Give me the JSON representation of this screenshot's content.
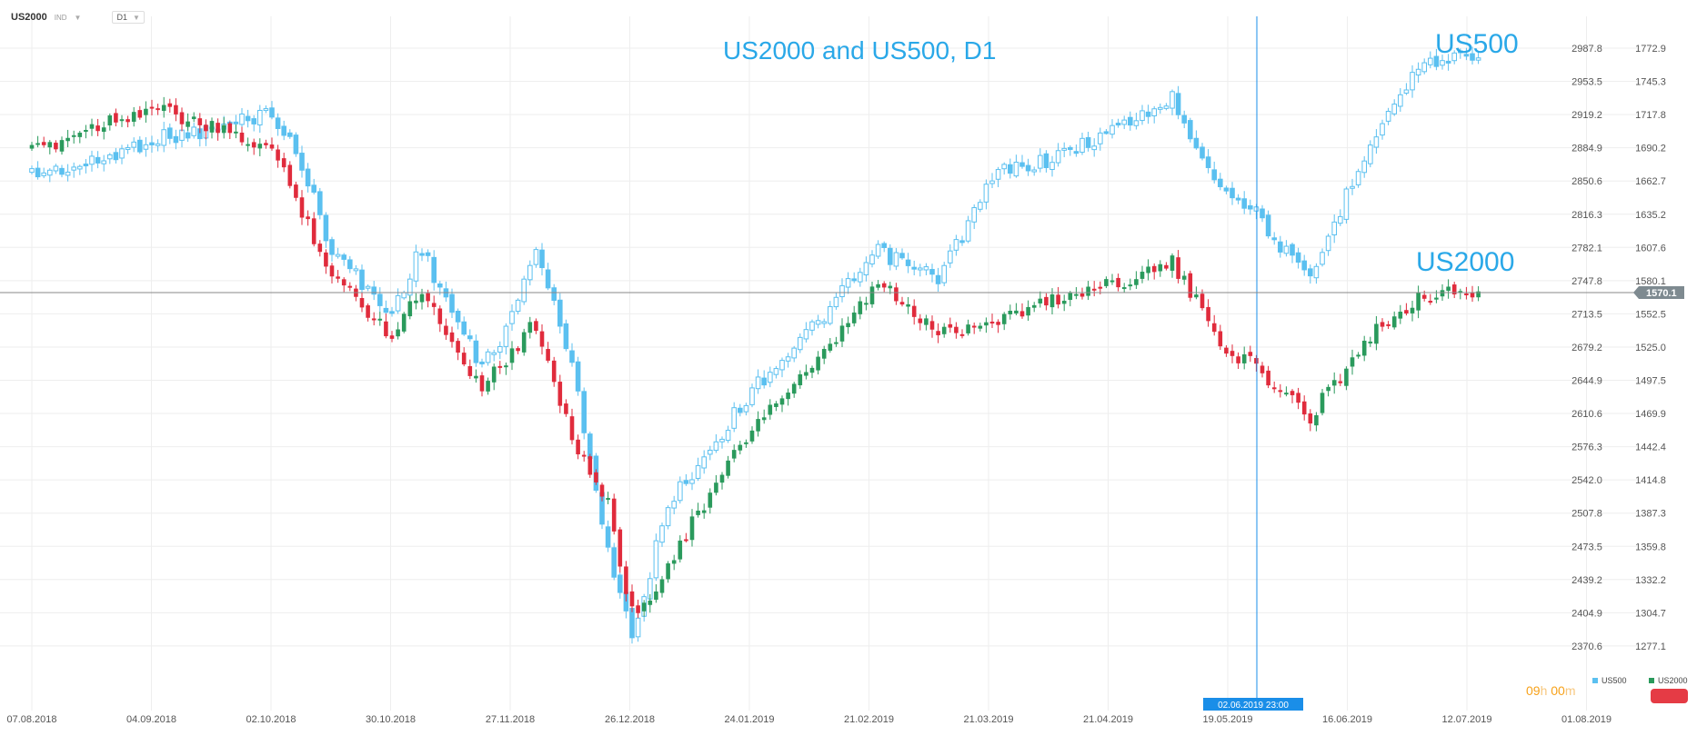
{
  "header": {
    "symbol": "US2000",
    "instrument_type": "IND",
    "timeframe": "D1"
  },
  "annotations": {
    "title": "US2000 and US500, D1",
    "label_us500": "US500",
    "label_us2000": "US2000"
  },
  "timer": {
    "hours": "09",
    "h_unit": "h",
    "minutes": "00",
    "m_unit": "m"
  },
  "legend": [
    {
      "name": "US500",
      "color": "#5bc0f0"
    },
    {
      "name": "US2000",
      "color": "#2a9a5c"
    }
  ],
  "crosshair": {
    "date_label": "02.06.2019 23:00",
    "price_label": "1570.1"
  },
  "colors": {
    "us500": "#5bc0f0",
    "up": "#2a9a5c",
    "down": "#e02b3c",
    "grid": "#eeeeee",
    "price_line": "#888888",
    "crosshair": "#1a8ee8",
    "accent": "#2aa8e8"
  },
  "chart_data": {
    "type": "candlestick",
    "title": "US2000 and US500, D1",
    "x_ticks": [
      "07.08.2018",
      "04.09.2018",
      "02.10.2018",
      "30.10.2018",
      "27.11.2018",
      "26.12.2018",
      "24.01.2019",
      "21.02.2019",
      "21.03.2019",
      "21.04.2019",
      "19.05.2019",
      "16.06.2019",
      "12.07.2019",
      "01.08.2019"
    ],
    "y_ticks_left": [
      2987.8,
      2953.5,
      2919.2,
      2884.9,
      2850.6,
      2816.3,
      2782.1,
      2747.8,
      2713.5,
      2679.2,
      2644.9,
      2610.6,
      2576.3,
      2542.0,
      2507.8,
      2473.5,
      2439.2,
      2404.9,
      2370.6
    ],
    "y_ticks_right": [
      1772.9,
      1745.3,
      1717.8,
      1690.2,
      1662.7,
      1635.2,
      1607.6,
      1580.1,
      1552.5,
      1525.0,
      1497.5,
      1469.9,
      1442.4,
      1414.8,
      1387.3,
      1359.8,
      1332.2,
      1304.7,
      1277.1
    ],
    "current_price": 1570.1,
    "series": [
      {
        "name": "US500",
        "axis": "left",
        "style": "hollow candles",
        "points": [
          {
            "date": "07.08.2018",
            "close": 2858
          },
          {
            "date": "21.08.2018",
            "close": 2868
          },
          {
            "date": "04.09.2018",
            "close": 2894
          },
          {
            "date": "18.09.2018",
            "close": 2903
          },
          {
            "date": "02.10.2018",
            "close": 2923
          },
          {
            "date": "09.10.2018",
            "close": 2870
          },
          {
            "date": "16.10.2018",
            "close": 2783
          },
          {
            "date": "30.10.2018",
            "close": 2711
          },
          {
            "date": "06.11.2018",
            "close": 2782
          },
          {
            "date": "20.11.2018",
            "close": 2658
          },
          {
            "date": "27.11.2018",
            "close": 2703
          },
          {
            "date": "03.12.2018",
            "close": 2785
          },
          {
            "date": "12.12.2018",
            "close": 2650
          },
          {
            "date": "20.12.2018",
            "close": 2468
          },
          {
            "date": "26.12.2018",
            "close": 2373
          },
          {
            "date": "02.01.2019",
            "close": 2510
          },
          {
            "date": "24.01.2019",
            "close": 2642
          },
          {
            "date": "07.02.2019",
            "close": 2704
          },
          {
            "date": "21.02.2019",
            "close": 2778
          },
          {
            "date": "07.03.2019",
            "close": 2750
          },
          {
            "date": "21.03.2019",
            "close": 2860
          },
          {
            "date": "04.04.2019",
            "close": 2875
          },
          {
            "date": "21.04.2019",
            "close": 2912
          },
          {
            "date": "01.05.2019",
            "close": 2935
          },
          {
            "date": "13.05.2019",
            "close": 2840
          },
          {
            "date": "19.05.2019",
            "close": 2827
          },
          {
            "date": "02.06.2019",
            "close": 2745
          },
          {
            "date": "16.06.2019",
            "close": 2890
          },
          {
            "date": "28.06.2019",
            "close": 2970
          },
          {
            "date": "12.07.2019",
            "close": 2985
          }
        ]
      },
      {
        "name": "US2000",
        "axis": "right",
        "style": "candles green/red",
        "points": [
          {
            "date": "07.08.2018",
            "close": 1686
          },
          {
            "date": "21.08.2018",
            "close": 1708
          },
          {
            "date": "04.09.2018",
            "close": 1724
          },
          {
            "date": "18.09.2018",
            "close": 1706
          },
          {
            "date": "02.10.2018",
            "close": 1690
          },
          {
            "date": "09.10.2018",
            "close": 1640
          },
          {
            "date": "16.10.2018",
            "close": 1586
          },
          {
            "date": "30.10.2018",
            "close": 1535
          },
          {
            "date": "06.11.2018",
            "close": 1573
          },
          {
            "date": "20.11.2018",
            "close": 1492
          },
          {
            "date": "27.11.2018",
            "close": 1518
          },
          {
            "date": "03.12.2018",
            "close": 1545
          },
          {
            "date": "12.12.2018",
            "close": 1445
          },
          {
            "date": "20.12.2018",
            "close": 1392
          },
          {
            "date": "26.12.2018",
            "close": 1295
          },
          {
            "date": "02.01.2019",
            "close": 1340
          },
          {
            "date": "24.01.2019",
            "close": 1465
          },
          {
            "date": "07.02.2019",
            "close": 1510
          },
          {
            "date": "21.02.2019",
            "close": 1578
          },
          {
            "date": "07.03.2019",
            "close": 1536
          },
          {
            "date": "21.03.2019",
            "close": 1548
          },
          {
            "date": "04.04.2019",
            "close": 1565
          },
          {
            "date": "21.04.2019",
            "close": 1582
          },
          {
            "date": "01.05.2019",
            "close": 1594
          },
          {
            "date": "13.05.2019",
            "close": 1525
          },
          {
            "date": "19.05.2019",
            "close": 1512
          },
          {
            "date": "02.06.2019",
            "close": 1466
          },
          {
            "date": "16.06.2019",
            "close": 1533
          },
          {
            "date": "28.06.2019",
            "close": 1568
          },
          {
            "date": "12.07.2019",
            "close": 1570
          }
        ]
      }
    ],
    "grid": true
  }
}
